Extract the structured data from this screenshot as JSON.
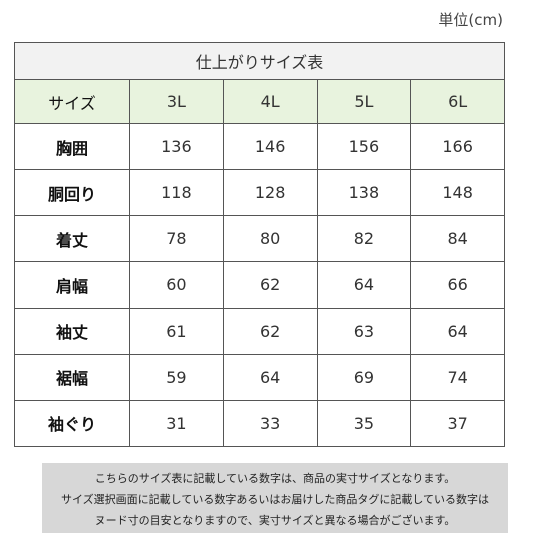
{
  "unit": "単位(cm)",
  "table": {
    "title": "仕上がりサイズ表",
    "header": {
      "label": "サイズ",
      "sizes": [
        "3L",
        "4L",
        "5L",
        "6L"
      ]
    },
    "rows": [
      {
        "label": "胸囲",
        "values": [
          "136",
          "146",
          "156",
          "166"
        ]
      },
      {
        "label": "胴回り",
        "values": [
          "118",
          "128",
          "138",
          "148"
        ]
      },
      {
        "label": "着丈",
        "values": [
          "78",
          "80",
          "82",
          "84"
        ]
      },
      {
        "label": "肩幅",
        "values": [
          "60",
          "62",
          "64",
          "66"
        ]
      },
      {
        "label": "袖丈",
        "values": [
          "61",
          "62",
          "63",
          "64"
        ]
      },
      {
        "label": "裾幅",
        "values": [
          "59",
          "64",
          "69",
          "74"
        ]
      },
      {
        "label": "袖ぐり",
        "values": [
          "31",
          "33",
          "35",
          "37"
        ]
      }
    ]
  },
  "note": {
    "lines": [
      "こちらのサイズ表に記載している数字は、商品の実寸サイズとなります。",
      "サイズ選択画面に記載している数字あるいはお届けした商品タグに記載している数字は",
      "ヌード寸の目安となりますので、実寸サイズと異なる場合がございます。"
    ]
  },
  "colors": {
    "header_bg": "#e8f3de",
    "title_bg": "#f2f2f2",
    "note_bg": "#d7d7d7",
    "border": "#555555"
  }
}
